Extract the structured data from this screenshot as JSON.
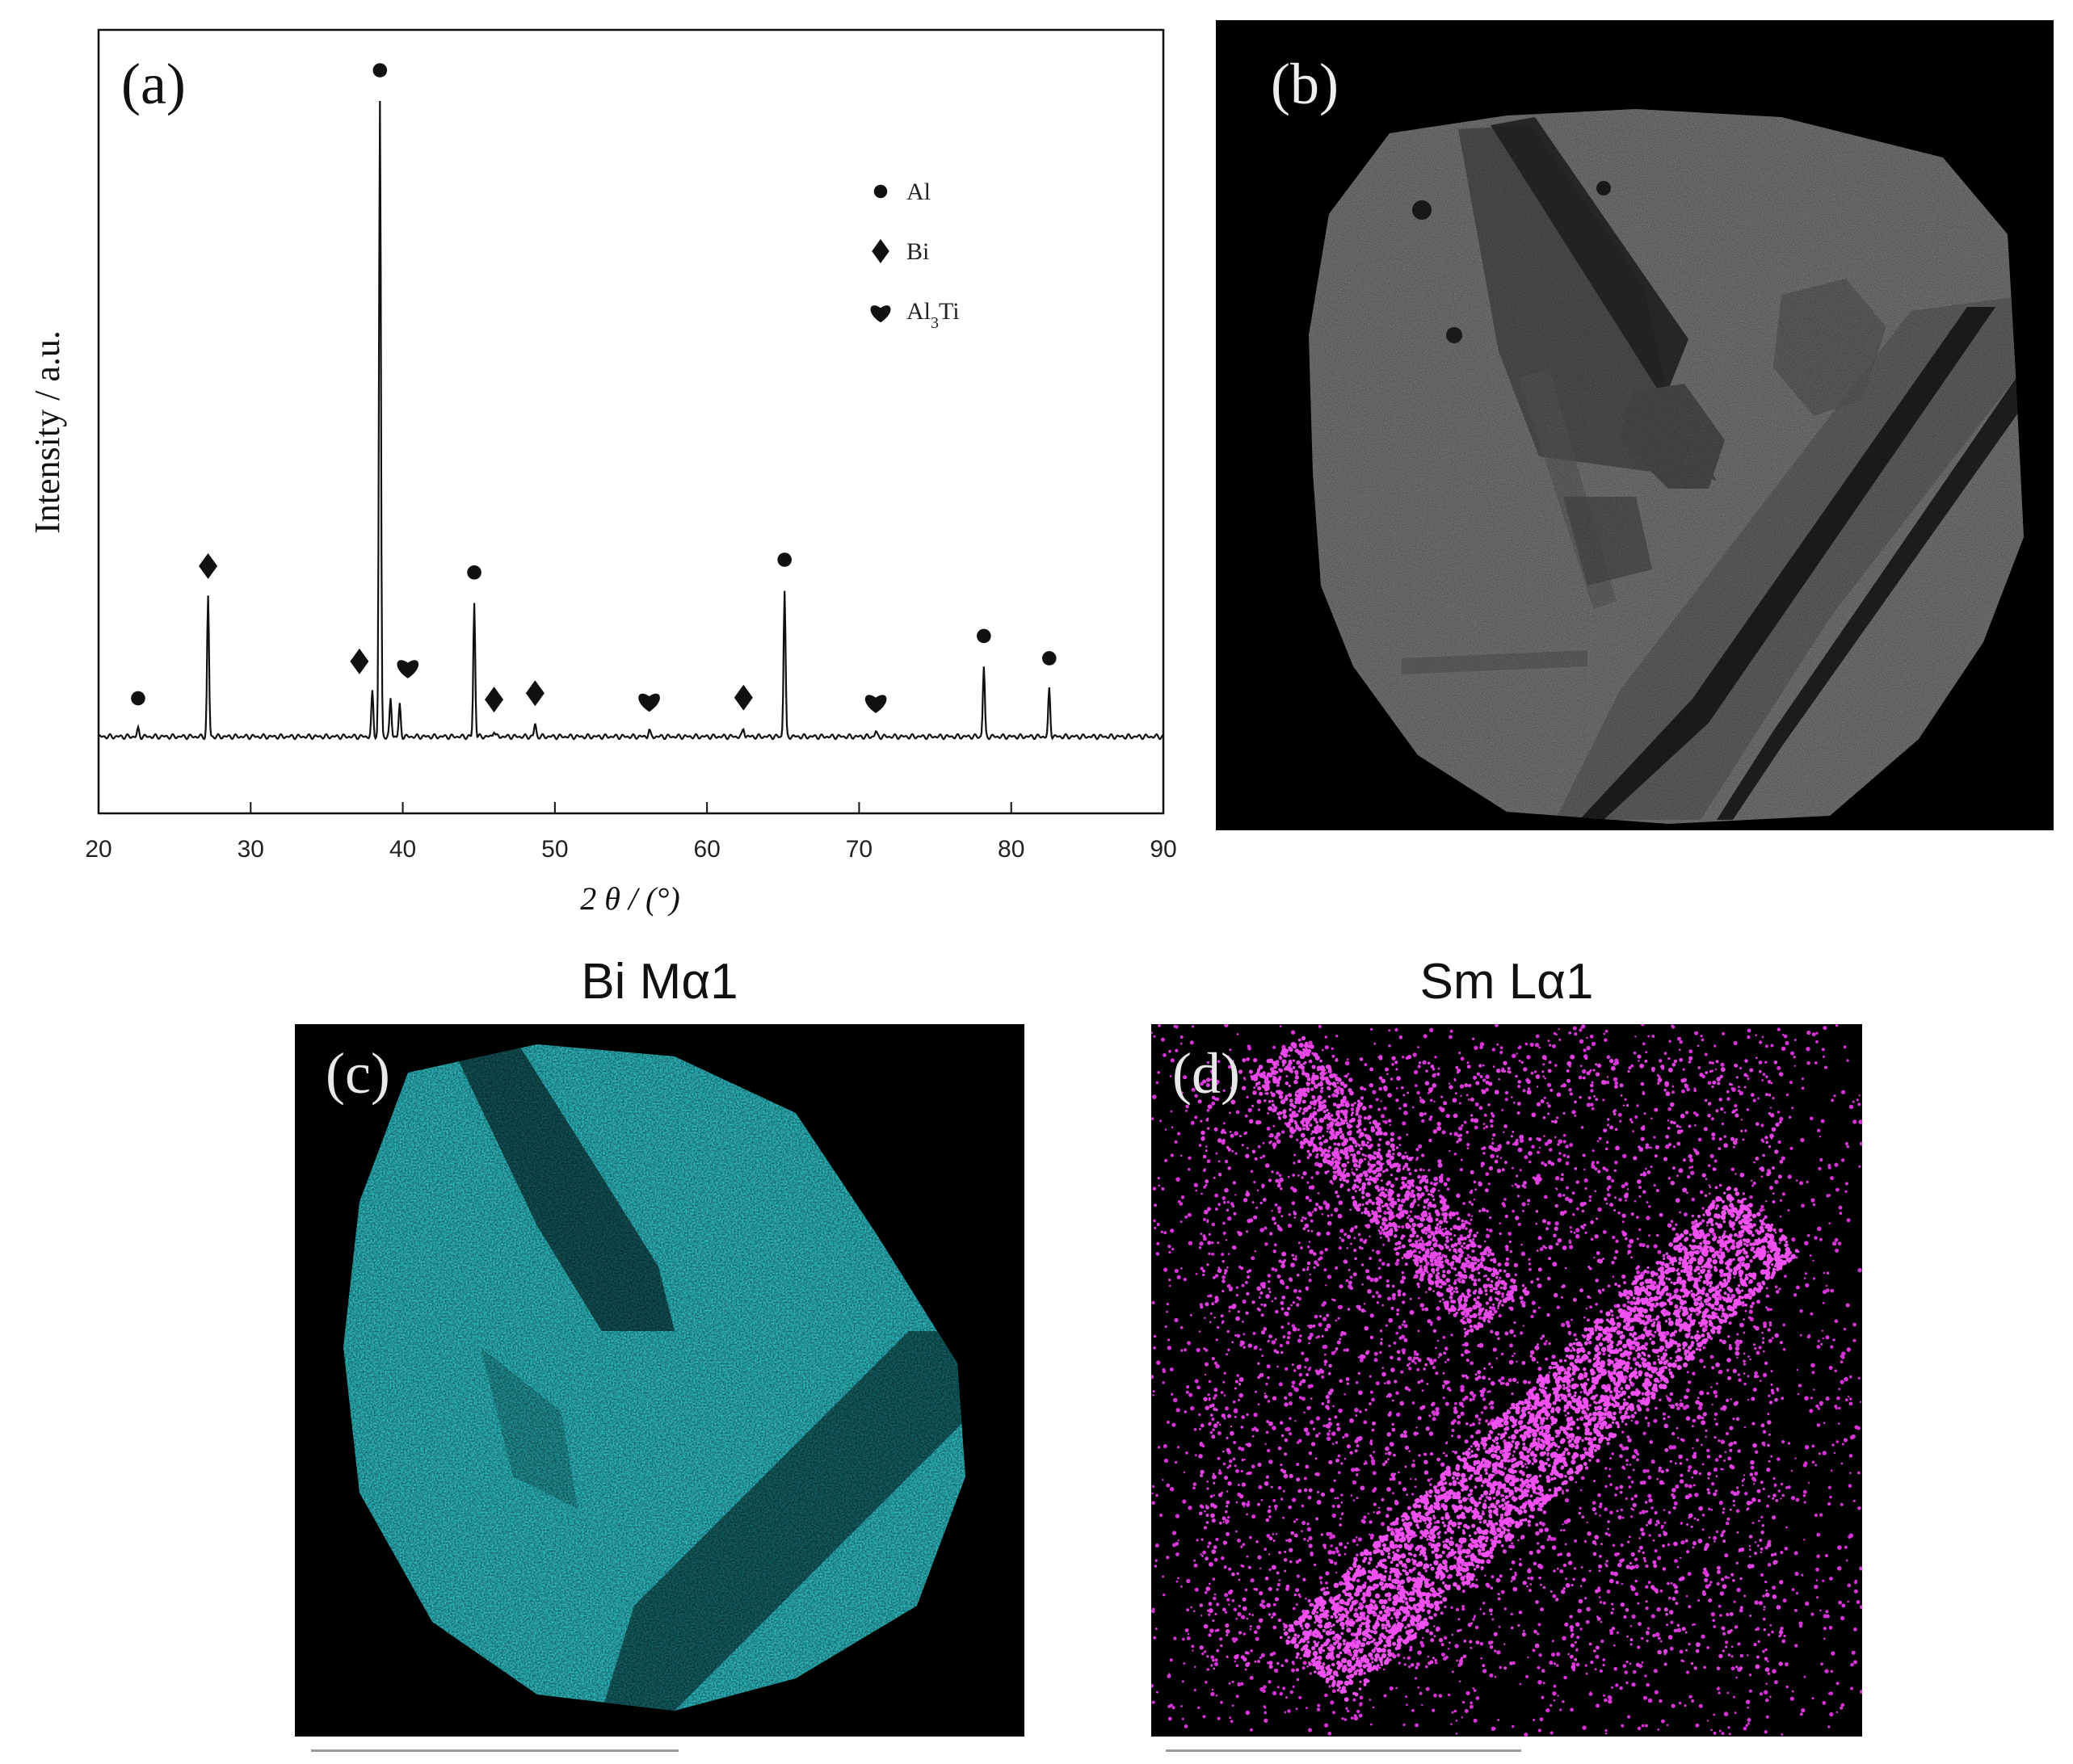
{
  "panels": {
    "a": "(a)",
    "b": "(b)",
    "c": "(c)",
    "d": "(d)"
  },
  "map_titles": {
    "c": "Bi Mα1",
    "d": "Sm Lα1"
  },
  "chart_data": {
    "type": "line",
    "title": "",
    "xlabel": "2 θ / (°)",
    "ylabel": "Intensity / a.u.",
    "xlim": [
      20,
      90
    ],
    "xticks": [
      20,
      30,
      40,
      50,
      60,
      70,
      80,
      90
    ],
    "grid": false,
    "legend_position": "top-right",
    "legend": [
      {
        "marker": "circle",
        "label": "Al"
      },
      {
        "marker": "diamond",
        "label": "Bi"
      },
      {
        "marker": "heart",
        "label": "Al",
        "sub": "3",
        "suffix": "Ti"
      }
    ],
    "peaks": [
      {
        "x": 22.6,
        "h": 0.012,
        "marker": "circle"
      },
      {
        "x": 27.2,
        "h": 0.22,
        "marker": "diamond"
      },
      {
        "x": 38.0,
        "h": 0.07,
        "marker": "diamond"
      },
      {
        "x": 38.5,
        "h": 1.0,
        "marker": "circle"
      },
      {
        "x": 39.2,
        "h": 0.06,
        "marker": null
      },
      {
        "x": 39.8,
        "h": 0.05,
        "marker": "heart"
      },
      {
        "x": 44.7,
        "h": 0.21,
        "marker": "circle"
      },
      {
        "x": 46.0,
        "h": 0.01,
        "marker": "diamond"
      },
      {
        "x": 48.7,
        "h": 0.02,
        "marker": "diamond"
      },
      {
        "x": 56.2,
        "h": 0.01,
        "marker": "heart"
      },
      {
        "x": 62.4,
        "h": 0.013,
        "marker": "diamond"
      },
      {
        "x": 65.1,
        "h": 0.23,
        "marker": "circle"
      },
      {
        "x": 71.1,
        "h": 0.008,
        "marker": "heart"
      },
      {
        "x": 78.2,
        "h": 0.11,
        "marker": "circle"
      },
      {
        "x": 82.5,
        "h": 0.075,
        "marker": "circle"
      }
    ]
  }
}
